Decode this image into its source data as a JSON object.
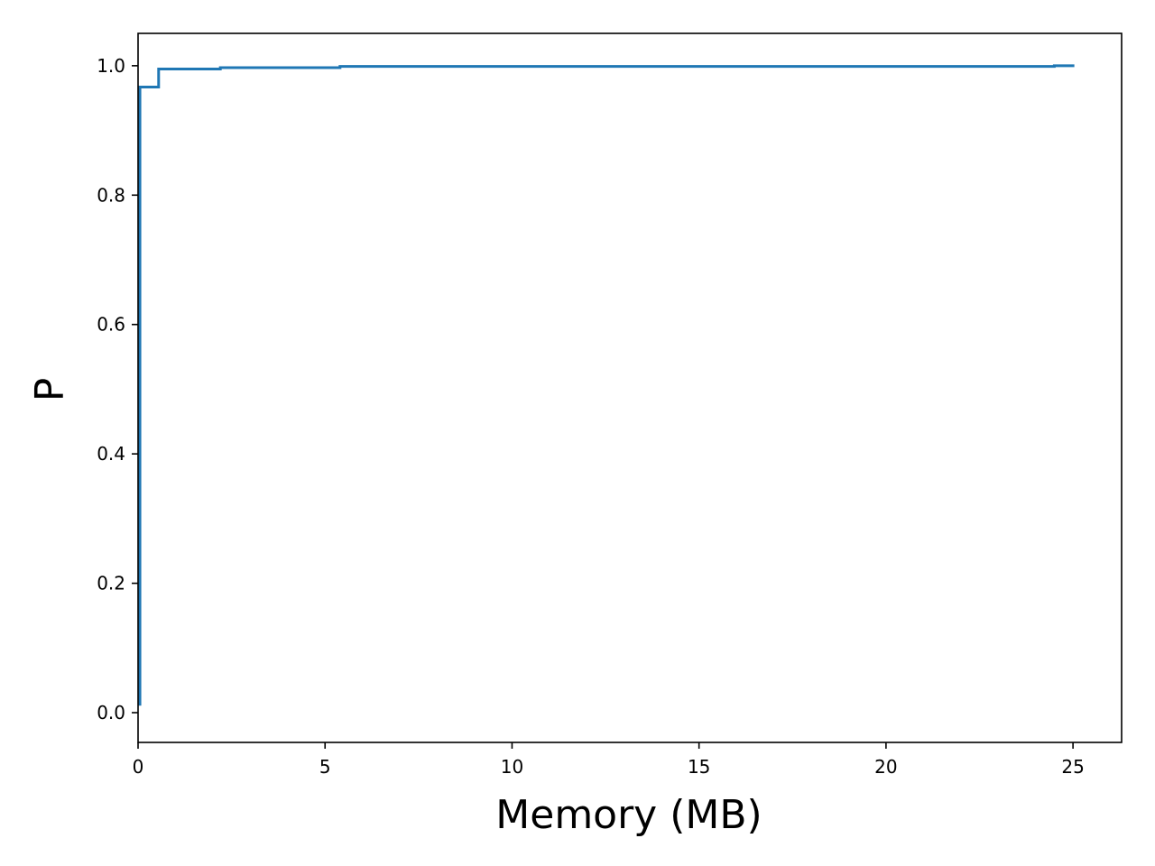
{
  "chart_data": {
    "type": "line",
    "step": true,
    "title": "",
    "xlabel": "Memory (MB)",
    "ylabel": "P",
    "xlim": [
      0,
      26.3
    ],
    "ylim": [
      -0.046,
      1.05
    ],
    "xticks": [
      0,
      5,
      10,
      15,
      20,
      25
    ],
    "yticks": [
      0.0,
      0.2,
      0.4,
      0.6,
      0.8,
      1.0
    ],
    "xtick_labels": [
      "0",
      "5",
      "10",
      "15",
      "20",
      "25"
    ],
    "ytick_labels": [
      "0.0",
      "0.2",
      "0.4",
      "0.6",
      "0.8",
      "1.0"
    ],
    "grid": false,
    "colors": {
      "line": "#1f77b4",
      "axes": "#000000",
      "background": "#ffffff"
    },
    "series": [
      {
        "x": [
          0.05,
          0.05,
          0.55,
          0.55,
          2.2,
          2.2,
          5.4,
          5.4,
          24.5,
          24.5,
          25.0
        ],
        "y": [
          0.013,
          0.967,
          0.967,
          0.995,
          0.995,
          0.997,
          0.997,
          0.999,
          0.999,
          1.0,
          1.0
        ]
      }
    ]
  }
}
